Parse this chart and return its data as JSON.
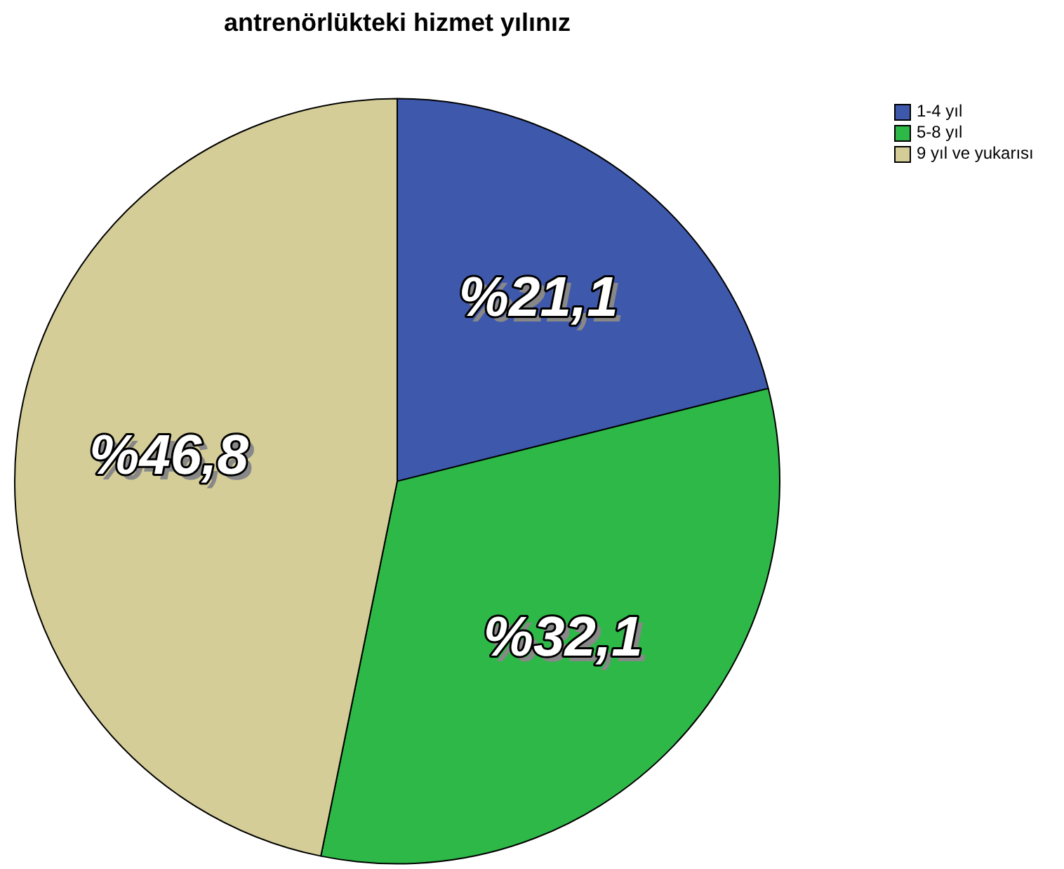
{
  "chart_data": {
    "type": "pie",
    "title": "antrenörlükteki hizmet yılınız",
    "categories": [
      "1-4 yıl",
      "5-8 yıl",
      "9 yıl ve yukarısı"
    ],
    "values": [
      21.1,
      32.1,
      46.8
    ],
    "colors": [
      "#3e58ac",
      "#2eb848",
      "#d4cd98"
    ],
    "value_labels": [
      "%21,1",
      "%32,1",
      "%46,8"
    ],
    "legend": "top right"
  }
}
